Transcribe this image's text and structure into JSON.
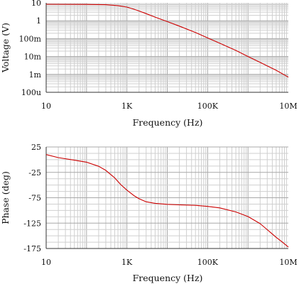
{
  "chart_data": [
    {
      "type": "line",
      "x_scale": "log",
      "y_scale": "log",
      "x_ticks": [
        "10",
        "1K",
        "100K",
        "10M"
      ],
      "y_ticks": [
        "10",
        "1",
        "100m",
        "10m",
        "1m",
        "100u"
      ],
      "xlim": [
        10,
        10000000
      ],
      "ylim": [
        0.0001,
        10
      ],
      "xlabel": "Frequency (Hz)",
      "ylabel": "Voltage (V)",
      "grid": true,
      "series": [
        {
          "color": "#cc0000",
          "x": [
            10,
            100,
            300,
            600,
            1000,
            1500,
            2000,
            3000,
            5000,
            10000,
            20000,
            50000,
            100000,
            200000,
            500000,
            1000000,
            2000000,
            5000000,
            10000000
          ],
          "y": [
            8.3,
            8.2,
            7.9,
            7.0,
            5.8,
            4.4,
            3.5,
            2.5,
            1.6,
            0.9,
            0.5,
            0.22,
            0.11,
            0.055,
            0.022,
            0.01,
            0.0047,
            0.0017,
            0.0007
          ]
        }
      ]
    },
    {
      "type": "line",
      "x_scale": "log",
      "x_ticks": [
        "10",
        "1K",
        "100K",
        "10M"
      ],
      "y_ticks": [
        "25",
        "-25",
        "-75",
        "-125",
        "-175"
      ],
      "xlim": [
        10,
        10000000
      ],
      "ylim": [
        -175,
        25
      ],
      "xlabel": "Frequency (Hz)",
      "ylabel": "Phase (deg)",
      "grid": true,
      "series": [
        {
          "color": "#cc0000",
          "x": [
            10,
            20,
            50,
            100,
            200,
            300,
            500,
            700,
            1000,
            1500,
            2000,
            3000,
            5000,
            10000,
            20000,
            50000,
            100000,
            200000,
            500000,
            1000000,
            2000000,
            3000000,
            5000000,
            7000000,
            10000000
          ],
          "y": [
            10,
            4,
            -1,
            -5,
            -13,
            -21,
            -36,
            -49,
            -60,
            -71,
            -77,
            -83,
            -86,
            -88,
            -89,
            -90,
            -92,
            -95,
            -103,
            -112,
            -126,
            -138,
            -153,
            -162,
            -172
          ]
        }
      ]
    }
  ]
}
